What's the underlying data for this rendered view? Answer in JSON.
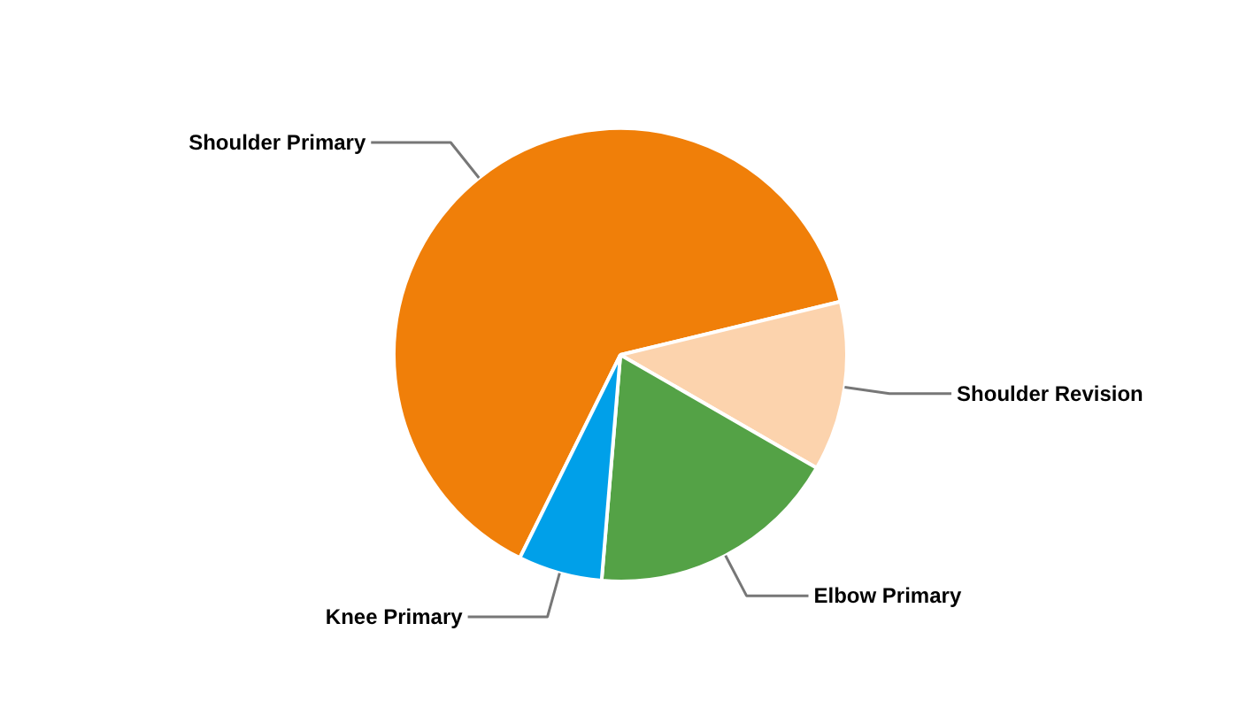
{
  "chart_data": {
    "type": "pie",
    "categories": [
      "Shoulder Primary",
      "Shoulder Revision",
      "Elbow Primary",
      "Knee Primary"
    ],
    "values": [
      63.9,
      12.1,
      18.0,
      6.0
    ],
    "colors": [
      "#f07f09",
      "#fcd3ad",
      "#54a246",
      "#00a0e9"
    ]
  }
}
